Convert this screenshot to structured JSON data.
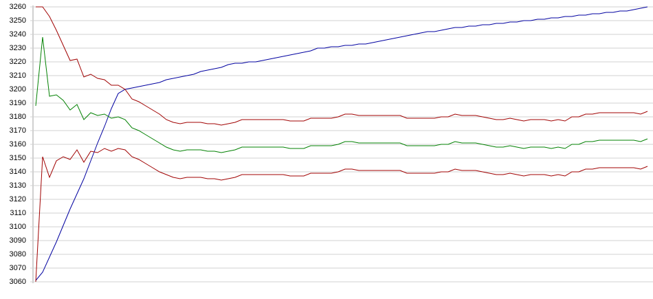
{
  "chart_data": {
    "type": "line",
    "categories": [
      null,
      null,
      null,
      null,
      null,
      null,
      null,
      null,
      null,
      null,
      null,
      null,
      null,
      null,
      null,
      null,
      null,
      null,
      null,
      null,
      null,
      null,
      null,
      null,
      null,
      null,
      null,
      null,
      null,
      null,
      null,
      null,
      null,
      null,
      null,
      null,
      null,
      null,
      null,
      null,
      null,
      null,
      null,
      null,
      null,
      null,
      null,
      null,
      null,
      null,
      null,
      null,
      null,
      null,
      null,
      null,
      null,
      null,
      null,
      null,
      null,
      null,
      null,
      null,
      null,
      null,
      null,
      null,
      null,
      null,
      null,
      null,
      null,
      null,
      null,
      null,
      null,
      null,
      null,
      null,
      null,
      null,
      null,
      null,
      null,
      null,
      null,
      null,
      null,
      null
    ],
    "ylim": [
      3060,
      3260
    ],
    "yticks": [
      3060,
      3070,
      3080,
      3090,
      3100,
      3110,
      3120,
      3130,
      3140,
      3150,
      3160,
      3170,
      3180,
      3190,
      3200,
      3210,
      3220,
      3230,
      3240,
      3250,
      3260
    ],
    "grid": true,
    "series": [
      {
        "color": "#0000a0",
        "values": [
          3061,
          3067,
          3078,
          3089,
          3101,
          3113,
          3124,
          3135,
          3148,
          3161,
          3173,
          3186,
          3197,
          3200,
          3201,
          3202,
          3203,
          3204,
          3205,
          3207,
          3208,
          3209,
          3210,
          3211,
          3213,
          3214,
          3215,
          3216,
          3218,
          3219,
          3219,
          3220,
          3220,
          3221,
          3222,
          3223,
          3224,
          3225,
          3226,
          3227,
          3228,
          3230,
          3230,
          3231,
          3231,
          3232,
          3232,
          3233,
          3233,
          3234,
          3235,
          3236,
          3237,
          3238,
          3239,
          3240,
          3241,
          3242,
          3242,
          3243,
          3244,
          3245,
          3245,
          3246,
          3246,
          3247,
          3247,
          3248,
          3248,
          3249,
          3249,
          3250,
          3250,
          3251,
          3251,
          3252,
          3252,
          3253,
          3253,
          3254,
          3254,
          3255,
          3255,
          3256,
          3256,
          3257,
          3257,
          3258,
          3259,
          3260
        ]
      },
      {
        "color": "#a00000",
        "values": [
          3260,
          3260,
          3253,
          3243,
          3232,
          3221,
          3222,
          3209,
          3211,
          3208,
          3207,
          3203,
          3203,
          3200,
          3193,
          3191,
          3188,
          3185,
          3182,
          3178,
          3176,
          3175,
          3176,
          3176,
          3176,
          3175,
          3175,
          3174,
          3175,
          3176,
          3178,
          3178,
          3178,
          3178,
          3178,
          3178,
          3178,
          3177,
          3177,
          3177,
          3179,
          3179,
          3179,
          3179,
          3180,
          3182,
          3182,
          3181,
          3181,
          3181,
          3181,
          3181,
          3181,
          3181,
          3179,
          3179,
          3179,
          3179,
          3179,
          3180,
          3180,
          3182,
          3181,
          3181,
          3181,
          3180,
          3179,
          3178,
          3178,
          3179,
          3178,
          3177,
          3178,
          3178,
          3178,
          3177,
          3178,
          3177,
          3180,
          3180,
          3182,
          3182,
          3183,
          3183,
          3183,
          3183,
          3183,
          3183,
          3182,
          3184
        ]
      },
      {
        "color": "#008000",
        "values": [
          3188,
          3238,
          3195,
          3196,
          3192,
          3185,
          3189,
          3178,
          3183,
          3181,
          3182,
          3179,
          3180,
          3178,
          3172,
          3170,
          3167,
          3164,
          3161,
          3158,
          3156,
          3155,
          3156,
          3156,
          3156,
          3155,
          3155,
          3154,
          3155,
          3156,
          3158,
          3158,
          3158,
          3158,
          3158,
          3158,
          3158,
          3157,
          3157,
          3157,
          3159,
          3159,
          3159,
          3159,
          3160,
          3162,
          3162,
          3161,
          3161,
          3161,
          3161,
          3161,
          3161,
          3161,
          3159,
          3159,
          3159,
          3159,
          3159,
          3160,
          3160,
          3162,
          3161,
          3161,
          3161,
          3160,
          3159,
          3158,
          3158,
          3159,
          3158,
          3157,
          3158,
          3158,
          3158,
          3157,
          3158,
          3157,
          3160,
          3160,
          3162,
          3162,
          3163,
          3163,
          3163,
          3163,
          3163,
          3163,
          3162,
          3164
        ]
      },
      {
        "color": "#a00000",
        "values": [
          3060,
          3151,
          3136,
          3148,
          3151,
          3149,
          3156,
          3147,
          3155,
          3154,
          3157,
          3155,
          3157,
          3156,
          3151,
          3149,
          3146,
          3143,
          3140,
          3138,
          3136,
          3135,
          3136,
          3136,
          3136,
          3135,
          3135,
          3134,
          3135,
          3136,
          3138,
          3138,
          3138,
          3138,
          3138,
          3138,
          3138,
          3137,
          3137,
          3137,
          3139,
          3139,
          3139,
          3139,
          3140,
          3142,
          3142,
          3141,
          3141,
          3141,
          3141,
          3141,
          3141,
          3141,
          3139,
          3139,
          3139,
          3139,
          3139,
          3140,
          3140,
          3142,
          3141,
          3141,
          3141,
          3140,
          3139,
          3138,
          3138,
          3139,
          3138,
          3137,
          3138,
          3138,
          3138,
          3137,
          3138,
          3137,
          3140,
          3140,
          3142,
          3142,
          3143,
          3143,
          3143,
          3143,
          3143,
          3143,
          3142,
          3144
        ]
      }
    ]
  }
}
